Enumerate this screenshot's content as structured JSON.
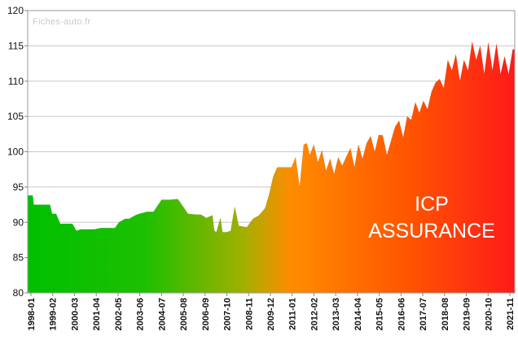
{
  "chart_data": {
    "type": "area",
    "watermark": "Fiches-auto.fr",
    "overlay_lines": [
      "ICP",
      "ASSURANCE"
    ],
    "ylim": [
      80,
      120
    ],
    "yticks": [
      80,
      85,
      90,
      95,
      100,
      105,
      110,
      115,
      120
    ],
    "xlim": [
      1998.0,
      2022.0
    ],
    "xticks": [
      "1998-01",
      "1999-02",
      "2000-03",
      "2001-04",
      "2002-05",
      "2003-06",
      "2004-07",
      "2005-08",
      "2006-09",
      "2007-10",
      "2008-11",
      "2009-12",
      "2011-01",
      "2012-02",
      "2013-03",
      "2014-04",
      "2015-05",
      "2016-06",
      "2017-07",
      "2018-08",
      "2019-09",
      "2020-10",
      "2021-11"
    ],
    "grid": true,
    "fill_gradient": [
      "#00c000",
      "#1cc000",
      "#9fb000",
      "#ff8c00",
      "#ff5500",
      "#ff1a1a"
    ],
    "series": [
      {
        "x": [
          1998.0,
          1998.25,
          1998.3,
          1998.7,
          1999.1,
          1999.2,
          1999.4,
          1999.6,
          2000.0,
          2000.2,
          2000.4,
          2000.6,
          2001.0,
          2001.3,
          2001.6,
          2002.0,
          2002.3,
          2002.5,
          2002.8,
          2003.0,
          2003.3,
          2003.5,
          2003.9,
          2004.2,
          2004.6,
          2004.9,
          2005.0,
          2005.4,
          2005.9,
          2006.3,
          2006.5,
          2006.6,
          2006.8,
          2007.1,
          2007.2,
          2007.3,
          2007.5,
          2007.6,
          2007.8,
          2008.0,
          2008.2,
          2008.4,
          2008.8,
          2009.1,
          2009.4,
          2009.7,
          2009.9,
          2010.1,
          2010.3,
          2010.5,
          2011.0,
          2011.2,
          2011.4,
          2011.6,
          2011.75,
          2011.9,
          2012.1,
          2012.3,
          2012.5,
          2012.7,
          2012.9,
          2013.1,
          2013.3,
          2013.5,
          2013.7,
          2013.9,
          2014.1,
          2014.3,
          2014.5,
          2014.7,
          2014.9,
          2015.1,
          2015.3,
          2015.5,
          2015.7,
          2015.9,
          2016.1,
          2016.3,
          2016.5,
          2016.7,
          2016.9,
          2017.1,
          2017.3,
          2017.5,
          2017.7,
          2017.9,
          2018.1,
          2018.3,
          2018.5,
          2018.7,
          2018.9,
          2019.1,
          2019.3,
          2019.5,
          2019.7,
          2019.9,
          2020.1,
          2020.3,
          2020.5,
          2020.7,
          2020.9,
          2021.1,
          2021.3,
          2021.5,
          2021.7,
          2021.9,
          2022.0
        ],
        "y": [
          93.8,
          93.8,
          92.5,
          92.5,
          92.5,
          91.2,
          91.2,
          89.8,
          89.8,
          89.8,
          88.8,
          89.0,
          89.0,
          89.0,
          89.2,
          89.2,
          89.2,
          90.0,
          90.5,
          90.5,
          91.0,
          91.2,
          91.5,
          91.5,
          93.2,
          93.2,
          93.2,
          93.3,
          91.2,
          91.1,
          91.1,
          91.0,
          90.6,
          91.0,
          88.8,
          88.6,
          90.6,
          88.6,
          88.6,
          88.8,
          92.2,
          89.5,
          89.3,
          90.5,
          91.0,
          92.0,
          94.0,
          96.5,
          97.8,
          97.8,
          97.8,
          99.2,
          95.0,
          101.0,
          101.2,
          99.5,
          101.0,
          98.5,
          100.2,
          97.3,
          99.0,
          96.8,
          99.2,
          98.0,
          99.3,
          100.5,
          97.8,
          101.0,
          99.0,
          101.2,
          102.2,
          100.0,
          102.4,
          102.3,
          99.5,
          101.5,
          103.5,
          104.4,
          102.0,
          105.0,
          104.5,
          107.0,
          105.5,
          107.2,
          106.0,
          108.5,
          109.8,
          110.3,
          109.0,
          113.0,
          111.5,
          113.8,
          110.0,
          113.0,
          111.5,
          115.6,
          113.0,
          115.0,
          111.0,
          115.5,
          111.5,
          115.3,
          111.0,
          113.5,
          111.0,
          114.5,
          114.5
        ]
      }
    ]
  }
}
